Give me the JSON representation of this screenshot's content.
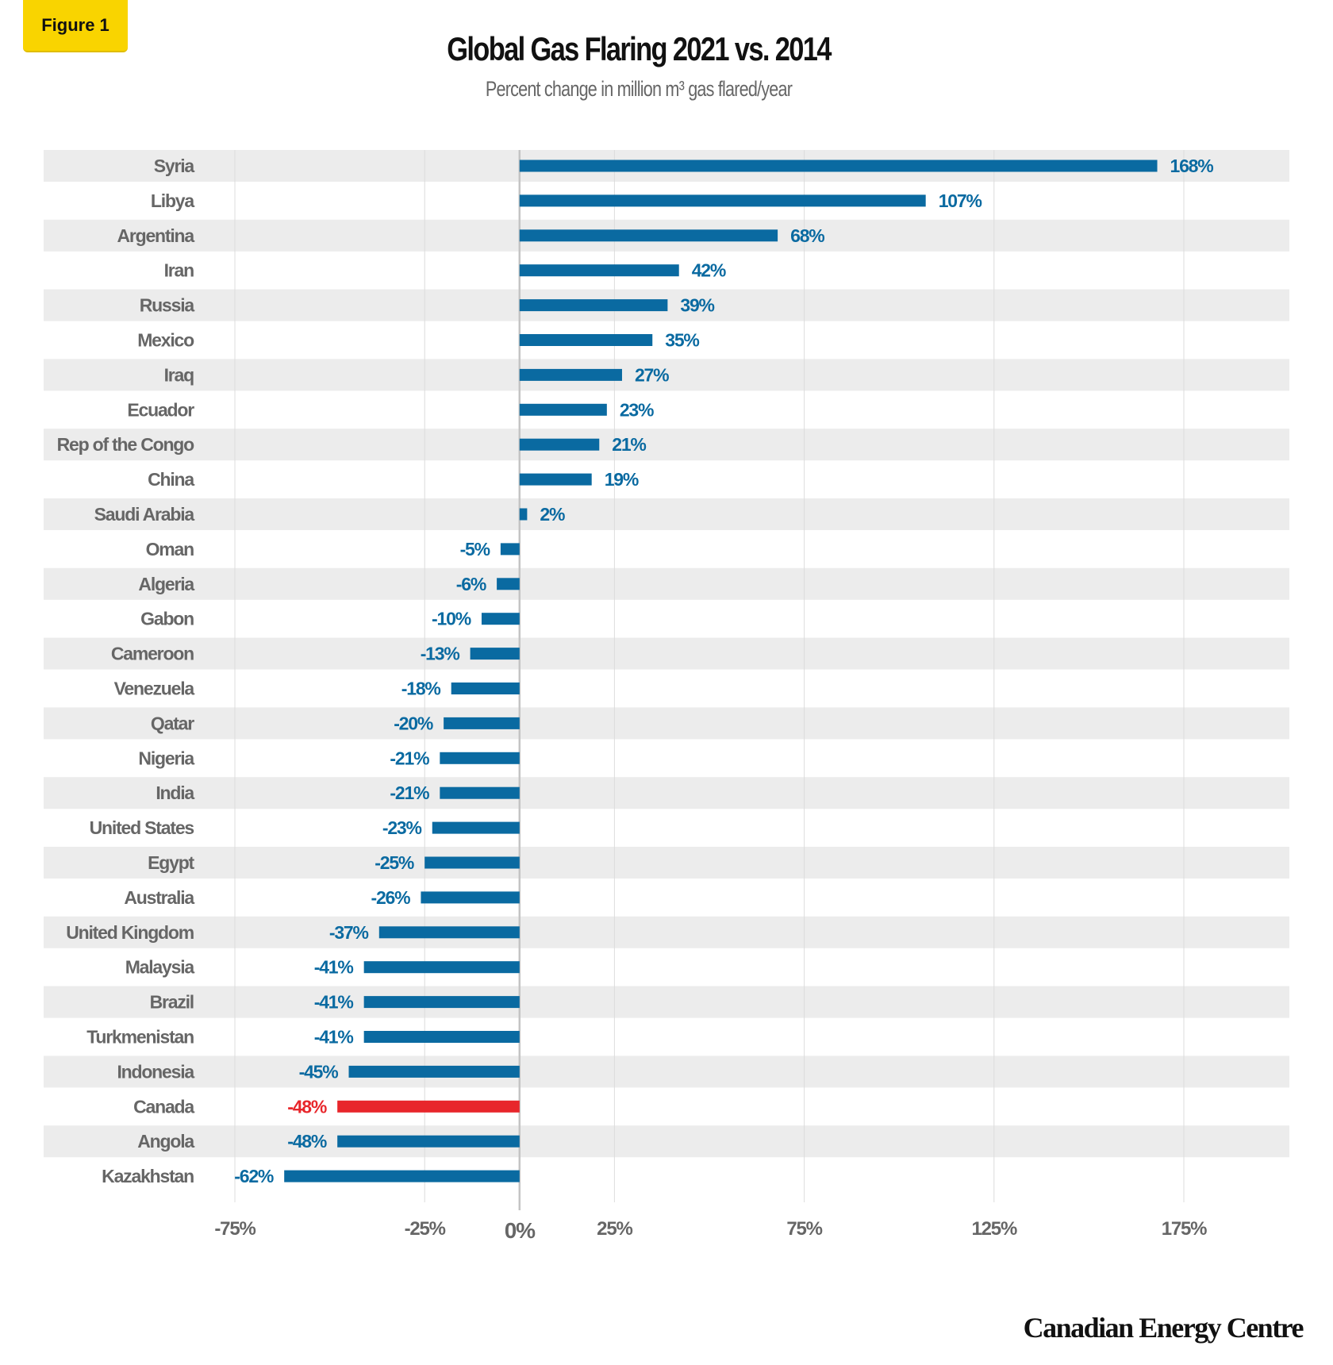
{
  "badge": "Figure 1",
  "chart_data": {
    "type": "bar",
    "orientation": "horizontal",
    "title": "Global Gas Flaring 2021 vs. 2014",
    "subtitle": "Percent change in million m³ gas flared/year",
    "categories": [
      "Syria",
      "Libya",
      "Argentina",
      "Iran",
      "Russia",
      "Mexico",
      "Iraq",
      "Ecuador",
      "Rep of the Congo",
      "China",
      "Saudi Arabia",
      "Oman",
      "Algeria",
      "Gabon",
      "Cameroon",
      "Venezuela",
      "Qatar",
      "Nigeria",
      "India",
      "United States",
      "Egypt",
      "Australia",
      "United Kingdom",
      "Malaysia",
      "Brazil",
      "Turkmenistan",
      "Indonesia",
      "Canada",
      "Angola",
      "Kazakhstan"
    ],
    "values": [
      168,
      107,
      68,
      42,
      39,
      35,
      27,
      23,
      21,
      19,
      2,
      -5,
      -6,
      -10,
      -13,
      -18,
      -20,
      -21,
      -21,
      -23,
      -25,
      -26,
      -37,
      -41,
      -41,
      -41,
      -45,
      -48,
      -48,
      -62
    ],
    "data_labels": [
      "168%",
      "107%",
      "68%",
      "42%",
      "39%",
      "35%",
      "27%",
      "23%",
      "21%",
      "19%",
      "2%",
      "-5%",
      "-6%",
      "-10%",
      "-13%",
      "-18%",
      "-20%",
      "-21%",
      "-21%",
      "-23%",
      "-25%",
      "-26%",
      "-37%",
      "-41%",
      "-41%",
      "-41%",
      "-45%",
      "-48%",
      "-48%",
      "-62%"
    ],
    "highlight": "Canada",
    "x_ticks": [
      -75,
      -25,
      0,
      25,
      75,
      125,
      175
    ],
    "x_tick_labels": [
      "-75%",
      "-25%",
      "0%",
      "25%",
      "75%",
      "125%",
      "175%"
    ],
    "xlim": [
      -75,
      175
    ],
    "grid": true,
    "colors": {
      "bar": "#0a6aa1",
      "highlight": "#e8262b",
      "band": "#ececec",
      "label": "#666666"
    }
  },
  "footer": {
    "logo": "Canadian Energy Centre"
  }
}
